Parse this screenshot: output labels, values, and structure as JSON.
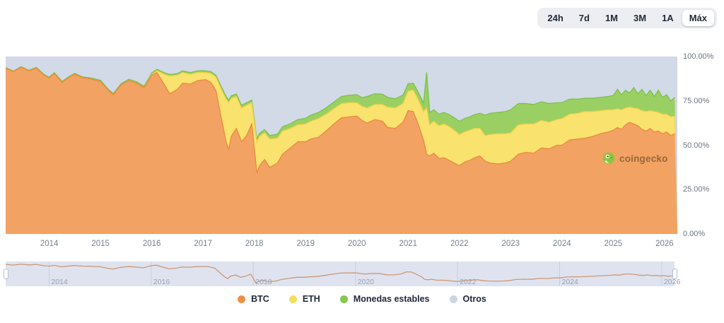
{
  "time_range": {
    "options": [
      "24h",
      "7d",
      "1M",
      "3M",
      "1A",
      "Máx"
    ],
    "selected": "Máx"
  },
  "watermark": {
    "text": "coingecko"
  },
  "legend": [
    {
      "name": "BTC",
      "label": "BTC",
      "color": "#ee9044"
    },
    {
      "name": "ETH",
      "label": "ETH",
      "color": "#f6dd5c"
    },
    {
      "name": "Monedas estables",
      "label": "Monedas estables",
      "color": "#84c74c"
    },
    {
      "name": "Otros",
      "label": "Otros",
      "color": "#ccd5e2"
    }
  ],
  "chart_data": {
    "type": "area",
    "stacked": true,
    "unit": "percent",
    "title": "",
    "xlabel": "",
    "ylabel": "",
    "ylim": [
      0,
      100
    ],
    "x_domain": [
      2013.15,
      2026.25
    ],
    "y_ticks": [
      {
        "label": "100.00%",
        "value": 100
      },
      {
        "label": "75.00%",
        "value": 75
      },
      {
        "label": "50.00%",
        "value": 50
      },
      {
        "label": "25.00%",
        "value": 25
      },
      {
        "label": "0.00%",
        "value": 0
      }
    ],
    "x_ticks": [
      2014,
      2015,
      2016,
      2017,
      2018,
      2019,
      2020,
      2021,
      2022,
      2023,
      2024,
      2025,
      2026
    ],
    "navigator_ticks": [
      2014,
      2016,
      2018,
      2020,
      2022,
      2024,
      2026
    ],
    "colors": {
      "btc_fill": "#f2a263",
      "btc_stroke": "#e9873c",
      "eth_fill": "#f9e26e",
      "eth_stroke": "#f0d145",
      "stable_fill": "#9ad063",
      "stable_stroke": "#77c043",
      "otros_fill": "#d2d9e7",
      "nav_bg": "#dfe3ef",
      "nav_line": "#cd9877",
      "nav_grid": "#c9cfdf"
    },
    "x": [
      2013.15,
      2013.3,
      2013.45,
      2013.6,
      2013.75,
      2013.9,
      2014,
      2014.1,
      2014.25,
      2014.4,
      2014.5,
      2014.65,
      2014.8,
      2015,
      2015.15,
      2015.25,
      2015.4,
      2015.55,
      2015.7,
      2015.85,
      2016,
      2016.1,
      2016.25,
      2016.35,
      2016.5,
      2016.6,
      2016.75,
      2016.9,
      2017.05,
      2017.15,
      2017.25,
      2017.35,
      2017.45,
      2017.5,
      2017.55,
      2017.65,
      2017.75,
      2017.85,
      2017.95,
      2018.05,
      2018.1,
      2018.2,
      2018.3,
      2018.45,
      2018.55,
      2018.7,
      2018.85,
      2019,
      2019.1,
      2019.25,
      2019.4,
      2019.55,
      2019.7,
      2019.85,
      2020,
      2020.1,
      2020.2,
      2020.35,
      2020.5,
      2020.6,
      2020.75,
      2020.9,
      2021,
      2021.1,
      2021.2,
      2021.3,
      2021.36,
      2021.42,
      2021.5,
      2021.6,
      2021.7,
      2021.8,
      2021.9,
      2022,
      2022.1,
      2022.2,
      2022.3,
      2022.4,
      2022.5,
      2022.6,
      2022.75,
      2022.9,
      2023,
      2023.15,
      2023.3,
      2023.45,
      2023.6,
      2023.75,
      2023.9,
      2024,
      2024.15,
      2024.3,
      2024.45,
      2024.6,
      2024.75,
      2024.9,
      2025,
      2025.08,
      2025.16,
      2025.24,
      2025.32,
      2025.4,
      2025.48,
      2025.56,
      2025.64,
      2025.72,
      2025.8,
      2025.88,
      2025.96,
      2026.04,
      2026.12,
      2026.2
    ],
    "series": [
      {
        "name": "BTC",
        "values": [
          93.5,
          91.5,
          94,
          92,
          93.5,
          89.5,
          88,
          90.5,
          85.5,
          88.5,
          90,
          88,
          87.5,
          86,
          81,
          78.5,
          84,
          86.5,
          85,
          82.5,
          89.5,
          91,
          84,
          79,
          81.5,
          85,
          84.5,
          86.5,
          87,
          85.5,
          81,
          66,
          52,
          47.5,
          55,
          59.5,
          52,
          55.5,
          62,
          34.5,
          38.5,
          42,
          37.5,
          40,
          45,
          48.5,
          52,
          52,
          53.5,
          54.5,
          58,
          62,
          65.5,
          66,
          66.5,
          64,
          62.5,
          64.5,
          63.5,
          60,
          59.5,
          63,
          69.5,
          69,
          61.5,
          53,
          45,
          44,
          45.5,
          42.5,
          43,
          41.5,
          40,
          38.5,
          40.5,
          41.5,
          43,
          44,
          41,
          40,
          39.5,
          40,
          41,
          45,
          46,
          45.5,
          48.5,
          48,
          50,
          50,
          53,
          53.5,
          54,
          55,
          56.5,
          57.5,
          58.5,
          60,
          59,
          61.5,
          63,
          62,
          61,
          59,
          58,
          59.5,
          57.5,
          58,
          56.5,
          57.5,
          55.5,
          56.5
        ]
      },
      {
        "name": "ETH",
        "values": [
          0,
          0,
          0,
          0,
          0,
          0,
          0,
          0,
          0,
          0,
          0,
          0,
          0,
          0,
          0,
          0,
          0,
          0,
          0,
          0,
          0.5,
          1,
          6,
          10,
          8,
          6,
          5.5,
          4.5,
          4,
          5,
          7.5,
          16,
          24,
          26.5,
          21.5,
          18,
          19,
          17,
          12,
          17.5,
          16.5,
          15,
          16,
          14,
          13,
          11,
          9.5,
          10,
          10,
          10.5,
          9.5,
          8.5,
          8,
          8,
          7.5,
          8,
          8.5,
          8.5,
          9.5,
          11.5,
          11.5,
          10.5,
          11,
          12,
          14,
          16,
          26,
          17.5,
          18,
          18.5,
          19,
          19,
          18.5,
          17.5,
          17,
          17,
          16.5,
          15.5,
          14.5,
          16,
          17,
          16.5,
          16,
          16.5,
          16,
          16.5,
          15.5,
          15,
          14.5,
          15,
          14.5,
          14.5,
          15,
          14,
          13,
          12.5,
          11.5,
          10.5,
          11,
          9.5,
          8.5,
          9,
          9.5,
          10.5,
          11,
          10,
          11.5,
          10.5,
          11,
          10,
          10.5,
          10
        ]
      },
      {
        "name": "Monedas estables",
        "values": [
          0.3,
          0.3,
          0.3,
          0.3,
          0.4,
          0.4,
          0.4,
          0.4,
          0.5,
          0.5,
          0.5,
          0.5,
          0.5,
          0.6,
          0.6,
          0.7,
          0.7,
          0.7,
          0.8,
          0.8,
          0.8,
          0.8,
          0.8,
          0.9,
          0.9,
          0.9,
          1,
          1,
          1,
          1,
          1.1,
          1.3,
          1.5,
          1.5,
          1.4,
          1.4,
          1.5,
          1.5,
          1.4,
          1.6,
          1.7,
          1.8,
          2,
          2.2,
          2.4,
          2.6,
          3,
          3.2,
          3.4,
          3.5,
          3.6,
          3.8,
          4,
          4.2,
          4.5,
          4.8,
          6.5,
          6,
          5.8,
          5.5,
          5.2,
          4.8,
          4.2,
          4,
          4.2,
          4.8,
          20,
          7,
          6.5,
          6.5,
          6.5,
          6.8,
          7,
          7.5,
          7.5,
          7.5,
          7.8,
          8.5,
          11.5,
          12,
          12,
          12.5,
          13,
          12,
          11.5,
          11,
          10.5,
          10.5,
          9.5,
          9,
          8.5,
          8,
          7.5,
          7.5,
          7.5,
          7.5,
          8,
          11,
          8.5,
          10,
          8,
          11.5,
          8.5,
          12,
          9,
          11.5,
          8.5,
          12.5,
          9.5,
          11,
          9,
          10.5
        ]
      },
      {
        "name": "Otros",
        "fills_to_top": true
      }
    ]
  }
}
